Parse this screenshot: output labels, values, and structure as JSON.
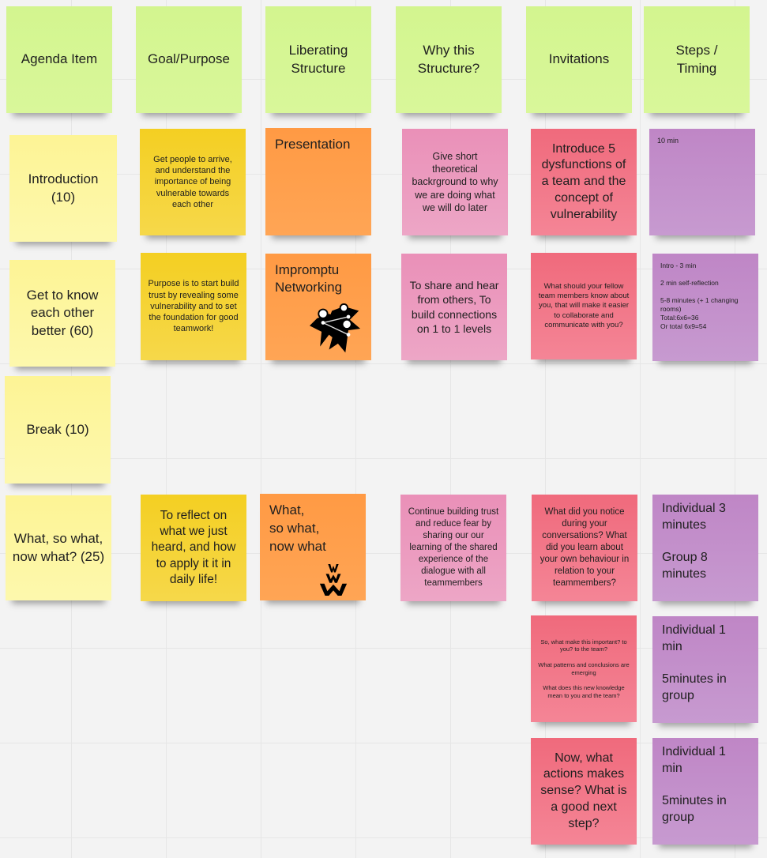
{
  "headers": [
    "Agenda Item",
    "Goal/Purpose",
    "Liberating\nStructure",
    "Why this\nStructure?",
    "Invitations",
    "Steps /\nTiming"
  ],
  "rows": [
    {
      "agenda": "Introduction\n(10)",
      "goal": "Get people to arrive, and understand the importance of being vulnerable towards each other",
      "structure": "Presentation",
      "why": "Give short theoretical backrground to why we are doing what we will do later",
      "invitations": [
        "Introduce 5 dysfunctions of a team and the concept of vulnerability"
      ],
      "steps": [
        "10 min"
      ]
    },
    {
      "agenda": "Get to know each other better (60)",
      "goal": "Purpose is to start build trust by revealing some vulnerability and to set the foundation for good teamwork!",
      "structure": "Impromptu\nNetworking",
      "structure_icon": "impromptu-networking-icon",
      "why": "To share and hear from others, To build connections on 1 to 1 levels",
      "invitations": [
        "What should your fellow team members know about you, that will make it easier to collaborate and communicate with you?"
      ],
      "steps": [
        "Intro - 3 min\n\n2 min self-reflection\n\n5-8 minutes (+ 1 changing rooms)\nTotal:6x6=36\nOr total 6x9=54"
      ]
    },
    {
      "agenda": "Break (10)"
    },
    {
      "agenda": "What, so what, now what? (25)",
      "goal": "To reflect on what we just heard, and how to apply it it in daily life!",
      "structure": "What,\nso what,\nnow what",
      "structure_icon": "www-icon",
      "why": "Continue building trust and reduce fear by sharing our our learning of the shared experience of the dialogue with all teammembers",
      "invitations": [
        "What did you notice during your conversations? What did you learn about your own behaviour in relation to your teammembers?",
        "So, what make this important? to you? to the team?\n\nWhat patterns and conclusions are emerging\n\nWhat does this new knowledge mean to you and the team?",
        "Now, what actions makes sense? What is a good next step?"
      ],
      "steps": [
        "Individual 3 minutes\n\nGroup 8 minutes",
        "Individual 1 min\n\n5minutes in group",
        "Individual 1 min\n\n5minutes in group"
      ]
    }
  ],
  "colors": {
    "header": "#d5f692",
    "agenda": "#fdf59a",
    "goal": "#f5d128",
    "structure": "#ff9d48",
    "why": "#ea94bb",
    "invitations": "#f16c7f",
    "steps": "#be88c7"
  }
}
